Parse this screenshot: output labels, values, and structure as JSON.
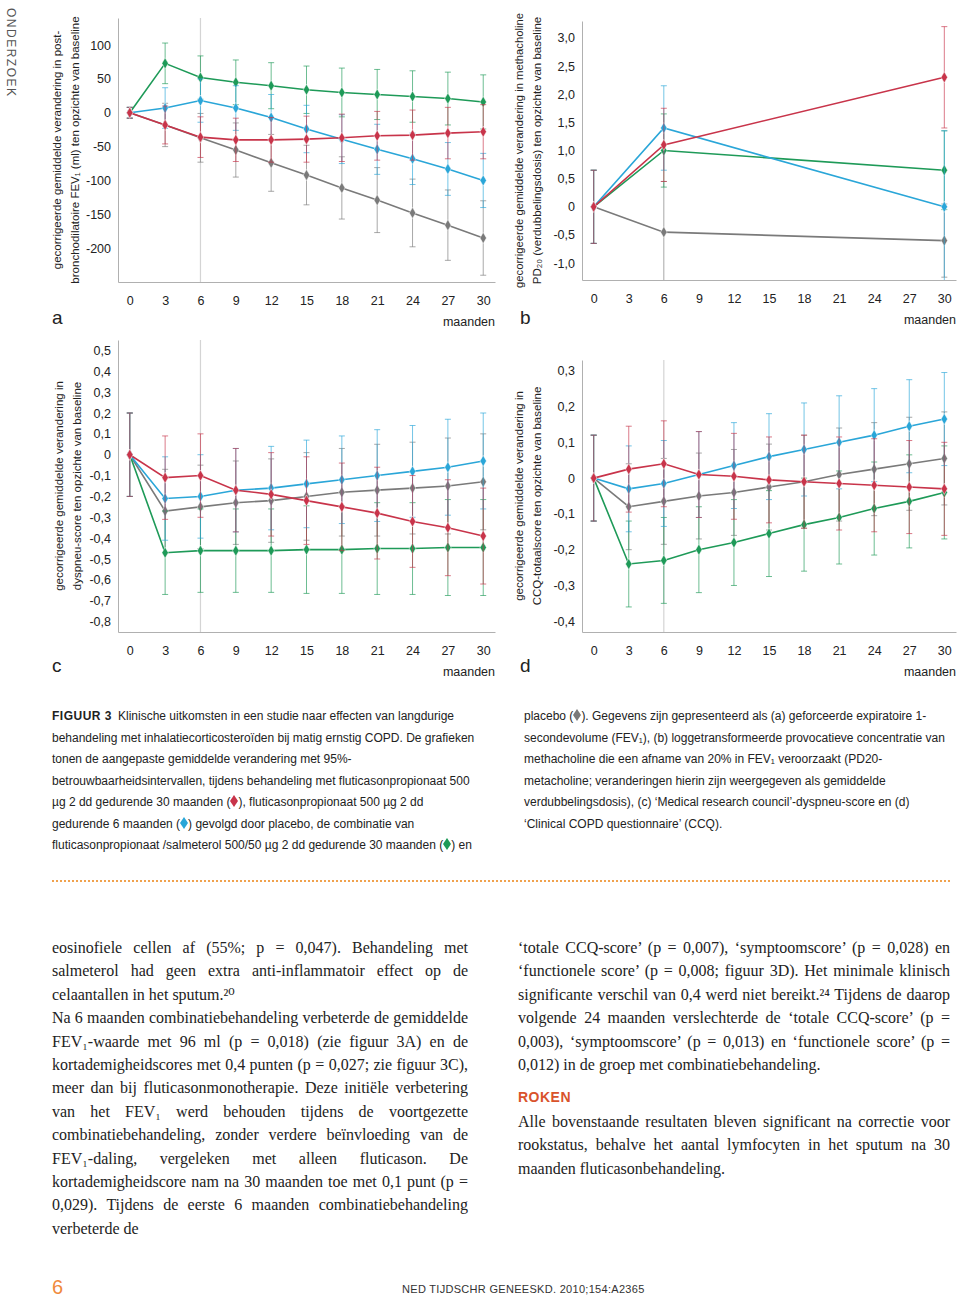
{
  "chart_data": [
    {
      "type": "line",
      "title": "a",
      "marker": "diamond",
      "ylabel": [
        "gecorrigeerde gemiddelde verandering in post-",
        "bronchodilatoire FEV₁ (ml) ten opzichte van baseline"
      ],
      "xlabel": "maanden",
      "x": [
        0,
        3,
        6,
        9,
        12,
        15,
        18,
        21,
        24,
        27,
        30
      ],
      "xlim": [
        -1,
        31
      ],
      "xticks": [
        0,
        3,
        6,
        9,
        12,
        15,
        18,
        21,
        24,
        27,
        30
      ],
      "ylim": [
        -250,
        140
      ],
      "yticks": [
        100,
        50,
        0,
        -50,
        -100,
        -150,
        -200
      ],
      "vline": 6,
      "series": [
        {
          "color": "#c8344a",
          "values": [
            0,
            -18,
            -36,
            -40,
            -40,
            -39,
            -37,
            -34,
            -33,
            -30,
            -28
          ],
          "errors": [
            8,
            28,
            30,
            32,
            33,
            34,
            35,
            36,
            37,
            38,
            40
          ]
        },
        {
          "color": "#2aa6d8",
          "values": [
            0,
            7,
            18,
            7,
            -7,
            -24,
            -39,
            -54,
            -68,
            -83,
            -100
          ],
          "errors": [
            8,
            30,
            32,
            33,
            34,
            35,
            36,
            37,
            38,
            39,
            40
          ]
        },
        {
          "color": "#1e9a58",
          "values": [
            0,
            73,
            52,
            45,
            40,
            34,
            30,
            27,
            24,
            21,
            16
          ],
          "errors": [
            8,
            30,
            32,
            33,
            34,
            35,
            36,
            37,
            38,
            39,
            40
          ]
        },
        {
          "color": "#7a7a7a",
          "values": [
            0,
            -18,
            -37,
            -55,
            -74,
            -92,
            -111,
            -129,
            -148,
            -166,
            -185
          ],
          "errors": [
            8,
            32,
            36,
            40,
            42,
            44,
            46,
            48,
            50,
            52,
            55
          ]
        }
      ]
    },
    {
      "type": "line",
      "title": "b",
      "marker": "diamond",
      "ylabel": [
        "gecorrigeerde gemiddelde verandering in methacholine",
        "PD₂₀ (verdubbelingsdosis) ten opzichte van baseline"
      ],
      "xlabel": "maanden",
      "x": [
        0,
        6,
        30
      ],
      "xlim": [
        -1,
        31
      ],
      "xticks": [
        0,
        3,
        6,
        9,
        12,
        15,
        18,
        21,
        24,
        27,
        30
      ],
      "ylim": [
        -1.3,
        3.3
      ],
      "yticks": [
        {
          "value": 3,
          "label": "3,0"
        },
        {
          "value": 2.5,
          "label": "2,5"
        },
        {
          "value": 2,
          "label": "2,0"
        },
        {
          "value": 1.5,
          "label": "1,5"
        },
        {
          "value": 1,
          "label": "1,0"
        },
        {
          "value": 0.5,
          "label": "0,5"
        },
        0,
        {
          "value": -0.5,
          "label": "-0,5"
        },
        {
          "value": -1,
          "label": "-1,0"
        }
      ],
      "series": [
        {
          "color": "#c8344a",
          "values": [
            0,
            1.1,
            2.3
          ],
          "errors": [
            0.65,
            0.65,
            0.9
          ]
        },
        {
          "color": "#2aa6d8",
          "values": [
            0,
            1.4,
            0
          ],
          "errors": [
            0.65,
            0.75,
            1.35
          ]
        },
        {
          "color": "#1e9a58",
          "values": [
            0,
            1.0,
            0.65
          ],
          "errors": [
            0.65,
            0.65,
            0.7
          ]
        },
        {
          "color": "#7a7a7a",
          "values": [
            0,
            -0.45,
            -0.6
          ],
          "errors": [
            0.65,
            0.9,
            0.65
          ]
        }
      ]
    },
    {
      "type": "line",
      "title": "c",
      "marker": "diamond",
      "ylabel": [
        "gecorrigeerde gemiddelde verandering in",
        "dyspneu-score ten opzichte van baseline"
      ],
      "xlabel": "maanden",
      "x": [
        0,
        3,
        6,
        9,
        12,
        15,
        18,
        21,
        24,
        27,
        30
      ],
      "xlim": [
        -1,
        31
      ],
      "xticks": [
        0,
        3,
        6,
        9,
        12,
        15,
        18,
        21,
        24,
        27,
        30
      ],
      "ylim": [
        -0.85,
        0.55
      ],
      "yticks": [
        {
          "value": 0.5,
          "label": "0,5"
        },
        {
          "value": 0.4,
          "label": "0,4"
        },
        {
          "value": 0.3,
          "label": "0,3"
        },
        {
          "value": 0.2,
          "label": "0,2"
        },
        {
          "value": 0.1,
          "label": "0,1"
        },
        0,
        {
          "value": -0.1,
          "label": "-0,1"
        },
        {
          "value": -0.2,
          "label": "-0,2"
        },
        {
          "value": -0.3,
          "label": "-0,3"
        },
        {
          "value": -0.4,
          "label": "-0,4"
        },
        {
          "value": -0.5,
          "label": "-0,5"
        },
        {
          "value": -0.6,
          "label": "-0,6"
        },
        {
          "value": -0.7,
          "label": "-0,7"
        },
        {
          "value": -0.8,
          "label": "-0,8"
        }
      ],
      "vline": 6,
      "series": [
        {
          "color": "#c8344a",
          "values": [
            0,
            -0.11,
            -0.1,
            -0.17,
            -0.19,
            -0.22,
            -0.25,
            -0.28,
            -0.32,
            -0.35,
            -0.39
          ],
          "errors": [
            0.2,
            0.2,
            0.2,
            0.2,
            0.2,
            0.21,
            0.21,
            0.22,
            0.22,
            0.23,
            0.23
          ]
        },
        {
          "color": "#2aa6d8",
          "values": [
            0,
            -0.21,
            -0.2,
            -0.17,
            -0.16,
            -0.14,
            -0.12,
            -0.1,
            -0.08,
            -0.06,
            -0.03
          ],
          "errors": [
            0.2,
            0.2,
            0.2,
            0.2,
            0.2,
            0.21,
            0.21,
            0.22,
            0.22,
            0.23,
            0.23
          ]
        },
        {
          "color": "#1e9a58",
          "values": [
            0,
            -0.47,
            -0.46,
            -0.46,
            -0.46,
            -0.455,
            -0.455,
            -0.45,
            -0.45,
            -0.445,
            -0.445
          ],
          "errors": [
            0.2,
            0.2,
            0.2,
            0.2,
            0.2,
            0.21,
            0.21,
            0.22,
            0.22,
            0.23,
            0.23
          ]
        },
        {
          "color": "#7a7a7a",
          "values": [
            0,
            -0.27,
            -0.25,
            -0.23,
            -0.22,
            -0.2,
            -0.18,
            -0.17,
            -0.16,
            -0.15,
            -0.13
          ],
          "errors": [
            0.2,
            0.2,
            0.2,
            0.2,
            0.2,
            0.21,
            0.21,
            0.22,
            0.22,
            0.23,
            0.23
          ]
        }
      ]
    },
    {
      "type": "line",
      "title": "d",
      "marker": "diamond",
      "ylabel": [
        "gecorrigeerde gemiddelde verandering in",
        "CCQ-totaalscore ten opzichte van baseline"
      ],
      "xlabel": "maanden",
      "x": [
        0,
        3,
        6,
        9,
        12,
        15,
        18,
        21,
        24,
        27,
        30
      ],
      "xlim": [
        -1,
        31
      ],
      "xticks": [
        0,
        3,
        6,
        9,
        12,
        15,
        18,
        21,
        24,
        27,
        30
      ],
      "ylim": [
        -0.43,
        0.33
      ],
      "yticks": [
        {
          "value": 0.3,
          "label": "0,3"
        },
        {
          "value": 0.2,
          "label": "0,2"
        },
        {
          "value": 0.1,
          "label": "0,1"
        },
        0,
        {
          "value": -0.1,
          "label": "-0,1"
        },
        {
          "value": -0.2,
          "label": "-0,2"
        },
        {
          "value": -0.3,
          "label": "-0,3"
        },
        {
          "value": -0.4,
          "label": "-0,4"
        }
      ],
      "vline": 6,
      "series": [
        {
          "color": "#c8344a",
          "values": [
            0,
            0.025,
            0.04,
            0.01,
            0.005,
            -0.005,
            -0.01,
            -0.015,
            -0.02,
            -0.025,
            -0.03
          ],
          "errors": [
            0.12,
            0.12,
            0.12,
            0.12,
            0.12,
            0.12,
            0.13,
            0.13,
            0.13,
            0.13,
            0.13
          ]
        },
        {
          "color": "#2aa6d8",
          "values": [
            0,
            -0.03,
            -0.015,
            0.01,
            0.035,
            0.06,
            0.08,
            0.1,
            0.12,
            0.145,
            0.165
          ],
          "errors": [
            0.12,
            0.12,
            0.12,
            0.12,
            0.12,
            0.12,
            0.13,
            0.13,
            0.13,
            0.13,
            0.13
          ]
        },
        {
          "color": "#1e9a58",
          "values": [
            0,
            -0.24,
            -0.23,
            -0.2,
            -0.18,
            -0.155,
            -0.13,
            -0.11,
            -0.085,
            -0.065,
            -0.04
          ],
          "errors": [
            0.12,
            0.12,
            0.12,
            0.12,
            0.12,
            0.12,
            0.13,
            0.13,
            0.13,
            0.13,
            0.13
          ]
        },
        {
          "color": "#7a7a7a",
          "values": [
            0,
            -0.08,
            -0.065,
            -0.05,
            -0.04,
            -0.025,
            -0.01,
            0.01,
            0.025,
            0.04,
            0.055
          ],
          "errors": [
            0.12,
            0.12,
            0.12,
            0.12,
            0.12,
            0.12,
            0.13,
            0.13,
            0.13,
            0.13,
            0.13
          ]
        }
      ]
    }
  ],
  "page": {
    "section": "ONDERZOEK",
    "caption": {
      "label": "FIGUUR 3",
      "segments": [
        "Klinische uitkomsten in een studie naar effecten van langdurige behandeling met inhalatiecorticosteroïden bij matig ernstig COPD. De grafieken tonen de aangepaste gemiddelde verandering met 95%-betrouwbaarheidsintervallen, tijdens behandeling met fluticasonpropionaat 500 µg 2 dd gedurende 30 maanden (",
        "), fluticasonpropionaat 500 µg 2 dd gedurende 6 maanden (",
        ") gevolgd door placebo, de combinatie van fluticasonpropionaat /salmeterol 500/50 µg 2 dd gedurende 30 maanden (",
        ") en placebo (",
        "). Gegevens zijn gepresenteerd als (a) geforceerde expiratoire 1-secondevolume (FEV₁), (b) loggetransformeerde provocatieve concentratie van methacholine die een afname van 20% in FEV₁ veroorzaakt (PD20-metacholine; veranderingen hierin zijn weergegeven als gemiddelde verdubbelingsdosis), (c) ‘Medical research council’-dyspneu-score en (d) ‘Clinical COPD questionnaire’ (CCQ)."
      ]
    },
    "body": {
      "left": [
        "eosinofiele cellen af (55%; p = 0,047). Behandeling met salmeterol had geen extra anti-inflammatoir effect op de celaantallen in het sputum.²⁰",
        "Na 6 maanden combinatiebehandeling verbeterde de gemiddelde FEV₁-waarde met 96 ml (p = 0,018) (zie figuur 3A) en de kortademigheidscores met 0,4 punten (p = 0,027; zie figuur 3C), meer dan bij fluticasonmonotherapie. Deze initiële verbetering van het FEV₁ werd behouden tijdens de voortgezette combinatiebehandeling, zonder verdere beïnvloeding van de FEV₁-daling, vergeleken met alleen fluticason. De kortademigheidscore nam na 30 maanden toe met 0,1 punt (p = 0,029). Tijdens de eerste 6 maanden combinatiebehandeling verbeterde de"
      ],
      "right": [
        "‘totale CCQ-score’ (p = 0,007), ‘symptoomscore’ (p = 0,028) en ‘functionele score’ (p = 0,008; figuur 3D). Het minimale klinisch significante verschil van 0,4 werd niet bereikt.²⁴ Tijdens de daarop volgende 24 maanden verslechterde de ‘totale CCQ-score’ (p = 0,003), ‘symptoomscore’ (p = 0,013) en ‘functionele score’ (p = 0,012) in de groep met combinatiebehandeling."
      ],
      "heading": "ROKEN",
      "after_heading": [
        "Alle bovenstaande resultaten bleven significant na correctie voor rookstatus, behalve het aantal lymfocyten in het sputum na 30 maanden fluticasonbehandeling."
      ]
    },
    "footer": {
      "page_number": 6,
      "journal": "NED TIJDSCHR GENEESKD. 2010;154:A2365"
    }
  }
}
